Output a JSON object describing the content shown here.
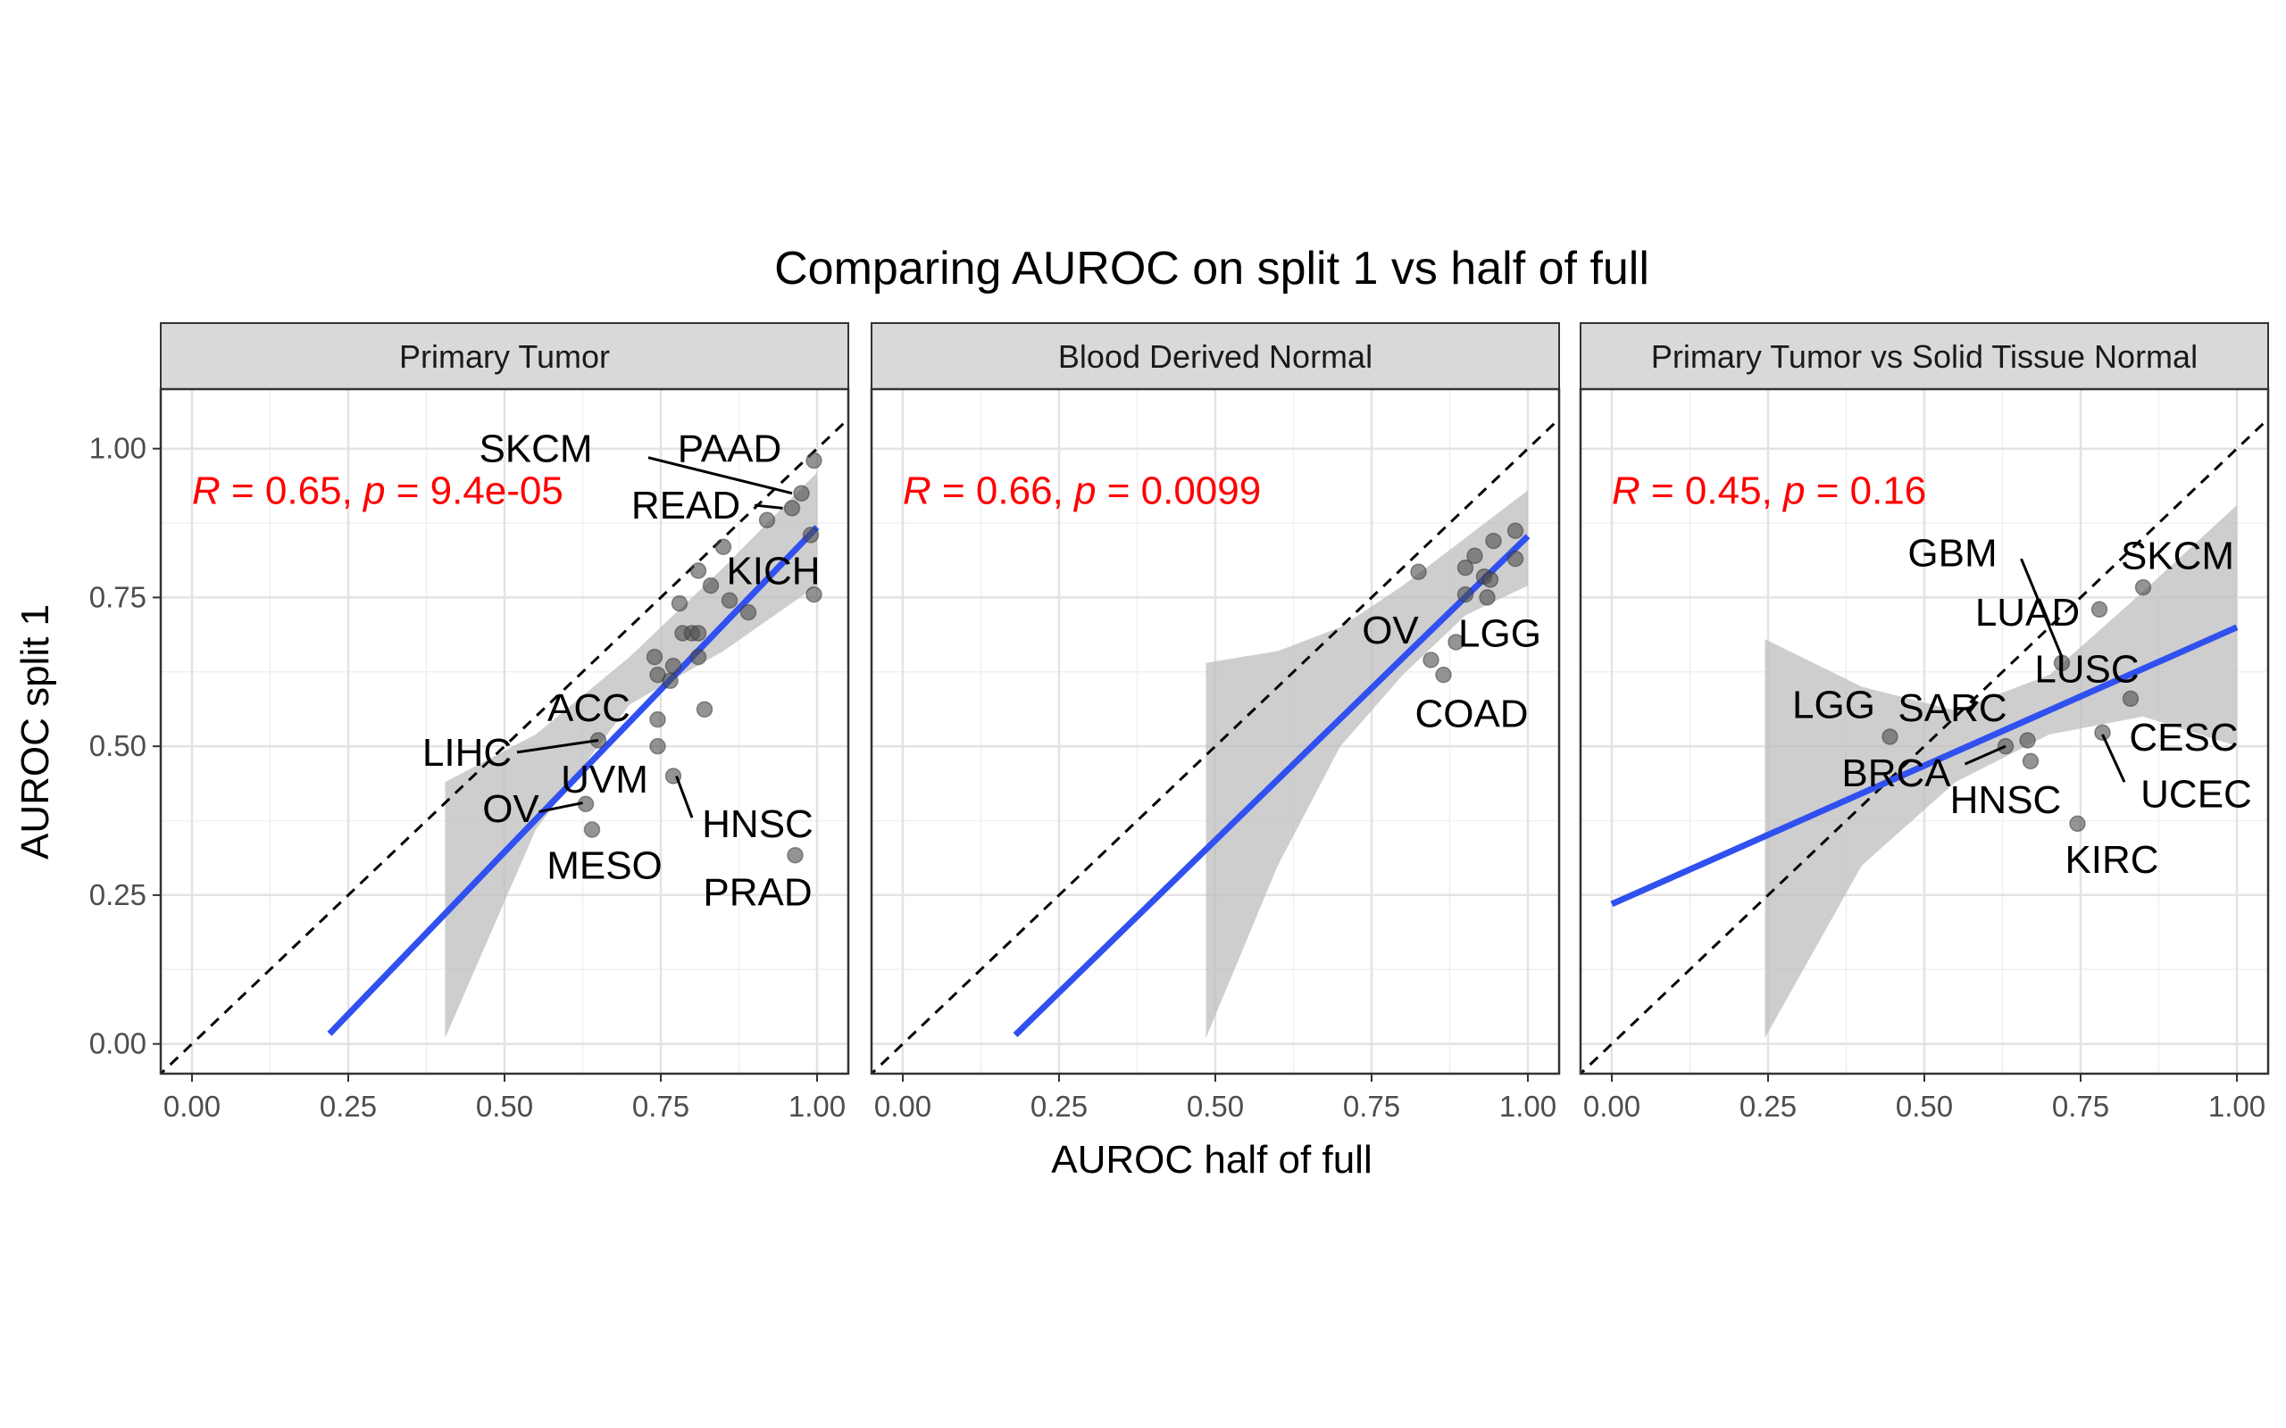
{
  "chart_data": {
    "type": "scatter",
    "title": "Comparing AUROC on split 1 vs half of full",
    "xlabel": "AUROC half of full",
    "ylabel": "AUROC split 1",
    "xlim": [
      -0.05,
      1.05
    ],
    "ylim": [
      -0.05,
      1.1
    ],
    "x_ticks": [
      "0.00",
      "0.25",
      "0.50",
      "0.75",
      "1.00"
    ],
    "y_ticks": [
      "0.00",
      "0.25",
      "0.50",
      "0.75",
      "1.00"
    ],
    "reference_line": "y = x (dashed)",
    "fit": "linear regression with 95% confidence band",
    "colors": {
      "points": "#4d4d4d",
      "fit": "#3050f0",
      "band": "#bebebe",
      "stat": "#ff0000",
      "strip": "#d9d9d9"
    },
    "grid": true,
    "panels": [
      {
        "strip": "Primary Tumor",
        "stat": {
          "R": "R",
          "R_value": " = 0.65, ",
          "p": "p",
          "p_value": " = 9.4e-05"
        },
        "fit": {
          "x": [
            0.22,
            1.0
          ],
          "y": [
            0.017,
            0.868
          ]
        },
        "band_x": [
          0.405,
          0.55,
          0.7,
          0.85,
          1.0
        ],
        "band_upper": [
          0.44,
          0.52,
          0.65,
          0.8,
          0.96
        ],
        "band_lower": [
          0.01,
          0.36,
          0.57,
          0.66,
          0.77
        ],
        "points": [
          [
            0.995,
            0.98
          ],
          [
            0.975,
            0.925
          ],
          [
            0.96,
            0.9
          ],
          [
            0.92,
            0.88
          ],
          [
            0.99,
            0.855
          ],
          [
            0.85,
            0.835
          ],
          [
            0.81,
            0.795
          ],
          [
            0.83,
            0.77
          ],
          [
            0.995,
            0.755
          ],
          [
            0.86,
            0.745
          ],
          [
            0.89,
            0.725
          ],
          [
            0.78,
            0.74
          ],
          [
            0.785,
            0.69
          ],
          [
            0.8,
            0.69
          ],
          [
            0.81,
            0.69
          ],
          [
            0.74,
            0.65
          ],
          [
            0.81,
            0.65
          ],
          [
            0.77,
            0.635
          ],
          [
            0.745,
            0.62
          ],
          [
            0.765,
            0.61
          ],
          [
            0.82,
            0.562
          ],
          [
            0.745,
            0.545
          ],
          [
            0.65,
            0.51
          ],
          [
            0.745,
            0.5
          ],
          [
            0.77,
            0.45
          ],
          [
            0.63,
            0.403
          ],
          [
            0.64,
            0.36
          ],
          [
            0.965,
            0.317
          ]
        ],
        "labels": [
          {
            "text": "SKCM",
            "x": 0.55,
            "y": 1.0,
            "px": 0.96,
            "py": 0.925,
            "line": [
              0.73,
              0.985,
              0.96,
              0.925
            ]
          },
          {
            "text": "PAAD",
            "x": 0.86,
            "y": 1.0
          },
          {
            "text": "READ",
            "x": 0.79,
            "y": 0.905,
            "line": [
              0.9,
              0.905,
              0.945,
              0.9
            ]
          },
          {
            "text": "KICH",
            "x": 0.93,
            "y": 0.795
          },
          {
            "text": "ACC",
            "x": 0.635,
            "y": 0.565
          },
          {
            "text": "LIHC",
            "x": 0.44,
            "y": 0.49,
            "line": [
              0.52,
              0.49,
              0.65,
              0.51
            ]
          },
          {
            "text": "UVM",
            "x": 0.66,
            "y": 0.445
          },
          {
            "text": "OV",
            "x": 0.51,
            "y": 0.395,
            "line": [
              0.555,
              0.39,
              0.625,
              0.405
            ]
          },
          {
            "text": "HNSC",
            "x": 0.905,
            "y": 0.37,
            "line": [
              0.8,
              0.38,
              0.775,
              0.45
            ]
          },
          {
            "text": "MESO",
            "x": 0.66,
            "y": 0.3
          },
          {
            "text": "PRAD",
            "x": 0.905,
            "y": 0.255
          }
        ]
      },
      {
        "strip": "Blood Derived Normal",
        "stat": {
          "R": "R",
          "R_value": " = 0.66, ",
          "p": "p",
          "p_value": " = 0.0099"
        },
        "fit": {
          "x": [
            0.18,
            1.0
          ],
          "y": [
            0.015,
            0.853
          ]
        },
        "band_x": [
          0.485,
          0.6,
          0.7,
          0.8,
          0.9,
          1.0
        ],
        "band_upper": [
          0.64,
          0.66,
          0.7,
          0.77,
          0.85,
          0.93
        ],
        "band_lower": [
          0.01,
          0.3,
          0.5,
          0.62,
          0.72,
          0.77
        ],
        "points": [
          [
            0.98,
            0.862
          ],
          [
            0.945,
            0.845
          ],
          [
            0.915,
            0.82
          ],
          [
            0.98,
            0.815
          ],
          [
            0.9,
            0.8
          ],
          [
            0.825,
            0.793
          ],
          [
            0.93,
            0.785
          ],
          [
            0.94,
            0.78
          ],
          [
            0.9,
            0.755
          ],
          [
            0.935,
            0.75
          ],
          [
            0.885,
            0.675
          ],
          [
            0.845,
            0.645
          ],
          [
            0.865,
            0.62
          ]
        ],
        "labels": [
          {
            "text": "OV",
            "x": 0.78,
            "y": 0.695
          },
          {
            "text": "LGG",
            "x": 0.955,
            "y": 0.69
          },
          {
            "text": "COAD",
            "x": 0.91,
            "y": 0.555
          }
        ]
      },
      {
        "strip": "Primary Tumor vs Solid Tissue Normal",
        "stat": {
          "R": "R",
          "R_value": " = 0.45, ",
          "p": "p",
          "p_value": " = 0.16"
        },
        "fit": {
          "x": [
            0.0,
            1.0
          ],
          "y": [
            0.235,
            0.7
          ]
        },
        "band_x": [
          0.245,
          0.4,
          0.55,
          0.7,
          0.85,
          1.0
        ],
        "band_upper": [
          0.68,
          0.6,
          0.56,
          0.62,
          0.76,
          0.905
        ],
        "band_lower": [
          0.01,
          0.3,
          0.44,
          0.52,
          0.55,
          0.5
        ],
        "points": [
          [
            0.85,
            0.767
          ],
          [
            0.78,
            0.73
          ],
          [
            0.72,
            0.64
          ],
          [
            0.83,
            0.58
          ],
          [
            0.785,
            0.523
          ],
          [
            0.445,
            0.516
          ],
          [
            0.63,
            0.5
          ],
          [
            0.665,
            0.51
          ],
          [
            0.67,
            0.475
          ],
          [
            0.745,
            0.37
          ]
        ],
        "labels": [
          {
            "text": "GBM",
            "x": 0.545,
            "y": 0.825,
            "line": [
              0.655,
              0.815,
              0.72,
              0.65
            ]
          },
          {
            "text": "SKCM",
            "x": 0.905,
            "y": 0.82
          },
          {
            "text": "LUAD",
            "x": 0.665,
            "y": 0.725
          },
          {
            "text": "LUSC",
            "x": 0.76,
            "y": 0.63
          },
          {
            "text": "LGG",
            "x": 0.355,
            "y": 0.57
          },
          {
            "text": "SARC",
            "x": 0.545,
            "y": 0.565,
            "line": [
              0.57,
              0.555,
              0.585,
              0.575
            ]
          },
          {
            "text": "CESC",
            "x": 0.915,
            "y": 0.515
          },
          {
            "text": "BRCA",
            "x": 0.455,
            "y": 0.455,
            "line": [
              0.565,
              0.47,
              0.63,
              0.5
            ]
          },
          {
            "text": "HNSC",
            "x": 0.63,
            "y": 0.41
          },
          {
            "text": "UCEC",
            "x": 0.935,
            "y": 0.42,
            "line": [
              0.82,
              0.44,
              0.785,
              0.52
            ]
          },
          {
            "text": "KIRC",
            "x": 0.8,
            "y": 0.31
          }
        ]
      }
    ]
  }
}
